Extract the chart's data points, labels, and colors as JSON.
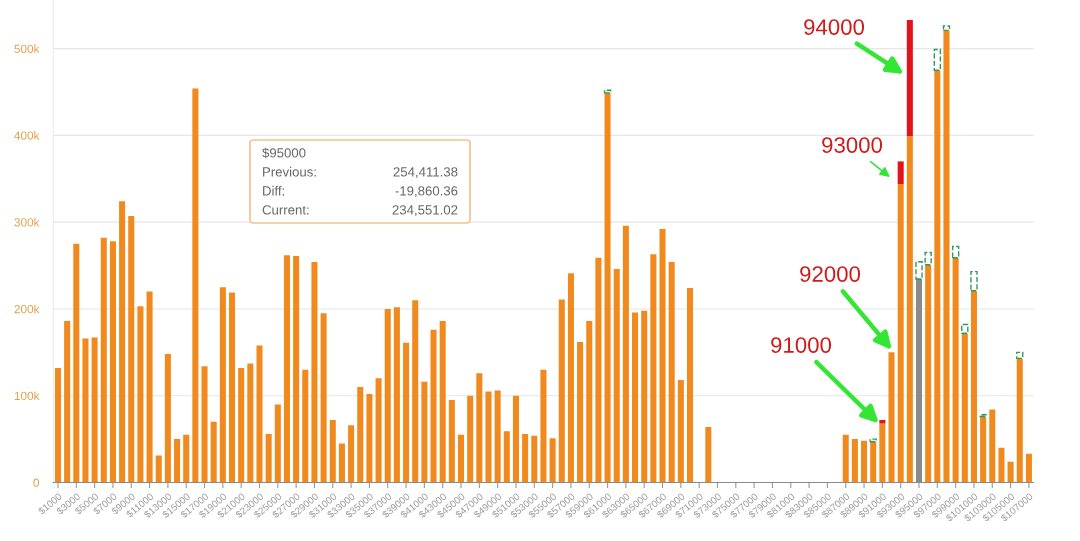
{
  "chart_data": {
    "type": "bar",
    "stacked": true,
    "grid": "y",
    "categories": [
      "$1000",
      null,
      "$3000",
      null,
      "$5000",
      null,
      "$7000",
      null,
      "$9000",
      null,
      "$11000",
      null,
      "$13000",
      null,
      "$15000",
      null,
      "$17000",
      null,
      "$19000",
      null,
      "$21000",
      null,
      "$23000",
      null,
      "$25000",
      null,
      "$27000",
      null,
      "$29000",
      null,
      "$31000",
      null,
      "$33000",
      null,
      "$35000",
      null,
      "$37000",
      null,
      "$39000",
      null,
      "$41000",
      null,
      "$43000",
      null,
      "$45000",
      null,
      "$47000",
      null,
      "$49000",
      null,
      "$51000",
      null,
      "$53000",
      null,
      "$55000",
      null,
      "$57000",
      null,
      "$59000",
      null,
      "$61000",
      null,
      "$63000",
      null,
      "$65000",
      null,
      "$67000",
      null,
      "$69000",
      null,
      "$71000",
      null,
      "$73000",
      null,
      "$75000",
      null,
      "$77000",
      null,
      "$79000",
      null,
      "$81000",
      null,
      "$83000",
      null,
      "$85000",
      null,
      "$87000",
      null,
      "$89000",
      null,
      "$91000",
      null,
      "$93000",
      null,
      "$95000",
      null,
      "$97000",
      null,
      "$99000",
      null,
      "$101000",
      null,
      "$103000",
      null,
      "$105000",
      null,
      "$107000"
    ],
    "series": [
      {
        "colors": [
          "#f08a1e",
          "#f08a1e",
          "#f08a1e",
          "#f08a1e",
          "#f08a1e",
          "#f08a1e",
          "#f08a1e",
          "#f08a1e",
          "#f08a1e",
          "#f08a1e",
          "#f08a1e",
          "#f08a1e",
          "#f08a1e",
          "#f08a1e",
          "#f08a1e",
          "#f08a1e",
          "#f08a1e",
          "#f08a1e",
          "#f08a1e",
          "#f08a1e",
          "#f08a1e",
          "#f08a1e",
          "#f08a1e",
          "#f08a1e",
          "#f08a1e",
          "#f08a1e",
          "#f08a1e",
          "#f08a1e",
          "#f08a1e",
          "#f08a1e",
          "#f08a1e",
          "#f08a1e",
          "#f08a1e",
          "#f08a1e",
          "#f08a1e",
          "#f08a1e",
          "#f08a1e",
          "#f08a1e",
          "#f08a1e",
          "#f08a1e",
          "#f08a1e",
          "#f08a1e",
          "#f08a1e",
          "#f08a1e",
          "#f08a1e",
          "#f08a1e",
          "#f08a1e",
          "#f08a1e",
          "#f08a1e",
          "#f08a1e",
          "#f08a1e",
          "#f08a1e",
          "#f08a1e",
          "#f08a1e",
          "#f08a1e",
          "#f08a1e",
          "#f08a1e",
          "#f08a1e",
          "#f08a1e",
          "#f08a1e",
          "#f08a1e",
          "#f08a1e",
          "#f08a1e",
          "#f08a1e",
          "#f08a1e",
          "#f08a1e",
          "#f08a1e",
          "#f08a1e",
          "#f08a1e",
          "#f08a1e",
          "#f08a1e",
          "#f08a1e",
          "#f08a1e",
          "#f08a1e",
          "#f08a1e",
          "#f08a1e",
          "#f08a1e",
          "#f08a1e",
          "#f08a1e",
          "#f08a1e",
          "#f08a1e",
          "#f08a1e",
          "#f08a1e",
          "#f08a1e",
          "#f08a1e",
          "#f08a1e",
          "#f08a1e",
          "#f08a1e",
          "#f08a1e",
          "#f08a1e",
          "#f08a1e",
          "#f08a1e",
          "#f08a1e",
          "#f08a1e",
          "#8a8a8a",
          "#f08a1e",
          "#f08a1e",
          "#f08a1e",
          "#f08a1e",
          "#f08a1e",
          "#f08a1e",
          "#f08a1e",
          "#f08a1e",
          "#f08a1e",
          "#f08a1e",
          "#f08a1e",
          "#f08a1e"
        ],
        "values": [
          132000,
          186000,
          275000,
          166000,
          167000,
          282000,
          278000,
          324000,
          307000,
          203000,
          220000,
          31000,
          148000,
          50000,
          55000,
          454000,
          134000,
          70000,
          225000,
          219000,
          132000,
          137000,
          158000,
          56000,
          90000,
          262000,
          261000,
          130000,
          254000,
          195000,
          72000,
          45000,
          66000,
          110000,
          102000,
          120000,
          200000,
          202000,
          161000,
          210000,
          116000,
          176000,
          186000,
          95000,
          55000,
          100000,
          126000,
          105000,
          106000,
          59000,
          100000,
          56000,
          54000,
          130000,
          51000,
          211000,
          241000,
          162000,
          186000,
          259000,
          449000,
          246000,
          296000,
          196000,
          198000,
          263000,
          292000,
          254000,
          118000,
          224000,
          null,
          64000,
          null,
          null,
          null,
          null,
          null,
          null,
          null,
          null,
          null,
          null,
          null,
          null,
          null,
          null,
          55000,
          50000,
          48000,
          47000,
          68000,
          150000,
          344000,
          399000,
          234551.02,
          251000,
          475000,
          521000,
          259000,
          172000,
          221000,
          76000,
          84000,
          40000,
          24000,
          143000,
          33000
        ]
      },
      {
        "color": "#e3121b",
        "values": [
          null,
          null,
          null,
          null,
          null,
          null,
          null,
          null,
          null,
          null,
          null,
          null,
          null,
          null,
          null,
          null,
          null,
          null,
          null,
          null,
          null,
          null,
          null,
          null,
          null,
          null,
          null,
          null,
          null,
          null,
          null,
          null,
          null,
          null,
          null,
          null,
          null,
          null,
          null,
          null,
          null,
          null,
          null,
          null,
          null,
          null,
          null,
          null,
          null,
          null,
          null,
          null,
          null,
          null,
          null,
          null,
          null,
          null,
          null,
          null,
          null,
          null,
          null,
          null,
          null,
          null,
          null,
          null,
          null,
          null,
          null,
          null,
          null,
          null,
          null,
          null,
          null,
          null,
          null,
          null,
          null,
          null,
          null,
          null,
          null,
          null,
          null,
          null,
          null,
          null,
          4000,
          null,
          26000,
          134000,
          null,
          null,
          null,
          null,
          null,
          null,
          null,
          null,
          null,
          null,
          null,
          null,
          null
        ]
      },
      {
        "color": "#2f9a5c",
        "line_style": "dashed",
        "values": [
          null,
          null,
          null,
          null,
          null,
          null,
          null,
          null,
          null,
          null,
          null,
          null,
          null,
          null,
          null,
          null,
          null,
          null,
          null,
          null,
          null,
          null,
          null,
          null,
          null,
          null,
          null,
          null,
          null,
          null,
          null,
          null,
          null,
          null,
          null,
          null,
          null,
          null,
          null,
          null,
          null,
          null,
          null,
          null,
          null,
          null,
          null,
          null,
          null,
          null,
          null,
          null,
          null,
          null,
          null,
          null,
          null,
          null,
          null,
          null,
          3000,
          null,
          null,
          null,
          null,
          null,
          null,
          null,
          null,
          null,
          null,
          null,
          null,
          null,
          null,
          null,
          null,
          null,
          null,
          null,
          null,
          null,
          null,
          null,
          null,
          null,
          null,
          null,
          null,
          3000,
          null,
          null,
          null,
          null,
          19860.36,
          14000,
          24000,
          5000,
          13000,
          10000,
          22000,
          2000,
          null,
          null,
          null,
          7000,
          null
        ]
      }
    ],
    "ylim": [
      0,
      556000
    ],
    "yticks": [
      0,
      {
        "value": 100000,
        "label": "100k"
      },
      {
        "value": 200000,
        "label": "200k"
      },
      {
        "value": 300000,
        "label": "300k"
      },
      {
        "value": 400000,
        "label": "400k"
      },
      {
        "value": 500000,
        "label": "500k"
      }
    ],
    "annotations": [
      "94000",
      {
        "text": "93000",
        "x": "$93000",
        "y": 352000
      },
      "92000",
      {
        "text": "91000",
        "x": "$91000",
        "y": 68000
      },
      "$95000",
      "Previous:",
      "254,411.38",
      "Diff:",
      "-19,860.36",
      "Current:",
      "234,551.02"
    ]
  }
}
